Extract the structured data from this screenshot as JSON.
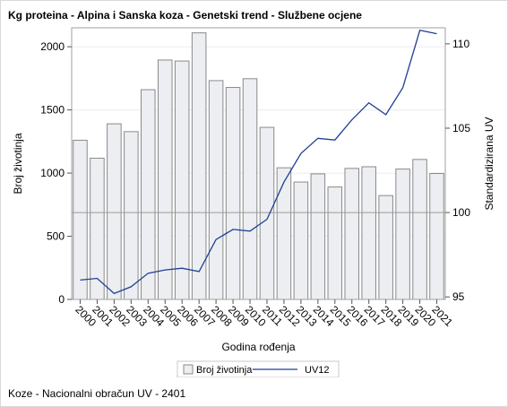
{
  "title": "Kg proteina - Alpina i Sanska koza - Genetski trend - Službene ocjene",
  "footnote": "Koze - Nacionalni obračun UV - 2401",
  "chart_data": {
    "type": "bar+line",
    "categories": [
      "2000",
      "2001",
      "2002",
      "2003",
      "2004",
      "2005",
      "2006",
      "2007",
      "2008",
      "2009",
      "2010",
      "2011",
      "2012",
      "2013",
      "2014",
      "2015",
      "2016",
      "2017",
      "2018",
      "2019",
      "2020",
      "2021"
    ],
    "xlabel": "Godina rođenja",
    "ylabel": "Broj životinja",
    "y2label": "Standardizirana UV",
    "ylim": [
      0,
      2150
    ],
    "y2lim": [
      94.85,
      110.95
    ],
    "yticks": [
      "0",
      "500",
      "1000",
      "1500",
      "2000"
    ],
    "y2ticks": [
      "95",
      "100",
      "105",
      "110"
    ],
    "reference_line_y2": 100,
    "legend_position": "bottom",
    "series": [
      {
        "name": "Broj životinja",
        "type": "bar",
        "axis": "left",
        "color": "#eceef2",
        "stroke": "#8a8a8a",
        "values": [
          1260,
          1118,
          1390,
          1328,
          1660,
          1895,
          1887,
          2110,
          1732,
          1678,
          1747,
          1362,
          1042,
          929,
          994,
          890,
          1037,
          1050,
          822,
          1032,
          1108,
          997
        ]
      },
      {
        "name": "UV12",
        "type": "line",
        "axis": "right",
        "color": "#1f3f93",
        "values": [
          96.0,
          96.1,
          95.2,
          95.6,
          96.4,
          96.6,
          96.7,
          96.5,
          98.4,
          99.0,
          98.9,
          99.6,
          101.8,
          103.5,
          104.4,
          104.3,
          105.5,
          106.5,
          105.8,
          107.4,
          110.8,
          110.6
        ]
      }
    ]
  }
}
